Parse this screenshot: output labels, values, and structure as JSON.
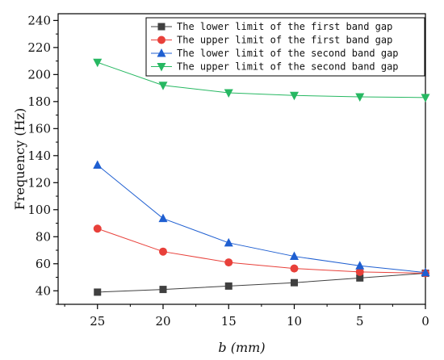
{
  "chart_data": {
    "type": "line",
    "title": "",
    "xlabel": "b (mm)",
    "ylabel": "Frequency (Hz)",
    "x": [
      25,
      20,
      15,
      10,
      5,
      0
    ],
    "x_reversed": true,
    "xlim": [
      0,
      28
    ],
    "ylim": [
      30,
      245
    ],
    "x_ticks": [
      25,
      20,
      15,
      10,
      5,
      0
    ],
    "y_ticks": [
      40,
      60,
      80,
      100,
      120,
      140,
      160,
      180,
      200,
      220,
      240
    ],
    "grid": false,
    "legend_position": "top-right",
    "series": [
      {
        "name": "The lower limit of the first band gap",
        "marker": "square",
        "color": "#404040",
        "values": [
          39,
          41,
          43.5,
          46,
          49.5,
          53
        ]
      },
      {
        "name": "The upper limit of the first band gap",
        "marker": "circle",
        "color": "#e8403a",
        "values": [
          86,
          69,
          61,
          56.5,
          54,
          53
        ]
      },
      {
        "name": "The lower limit of the second band gap",
        "marker": "triangle-up",
        "color": "#1f5fd1",
        "values": [
          133,
          93.5,
          75.5,
          65.5,
          58.5,
          53.5
        ]
      },
      {
        "name": "The upper limit of the second band gap",
        "marker": "triangle-down",
        "color": "#27b862",
        "values": [
          209,
          192,
          186.5,
          184.5,
          183.5,
          183
        ]
      }
    ]
  }
}
